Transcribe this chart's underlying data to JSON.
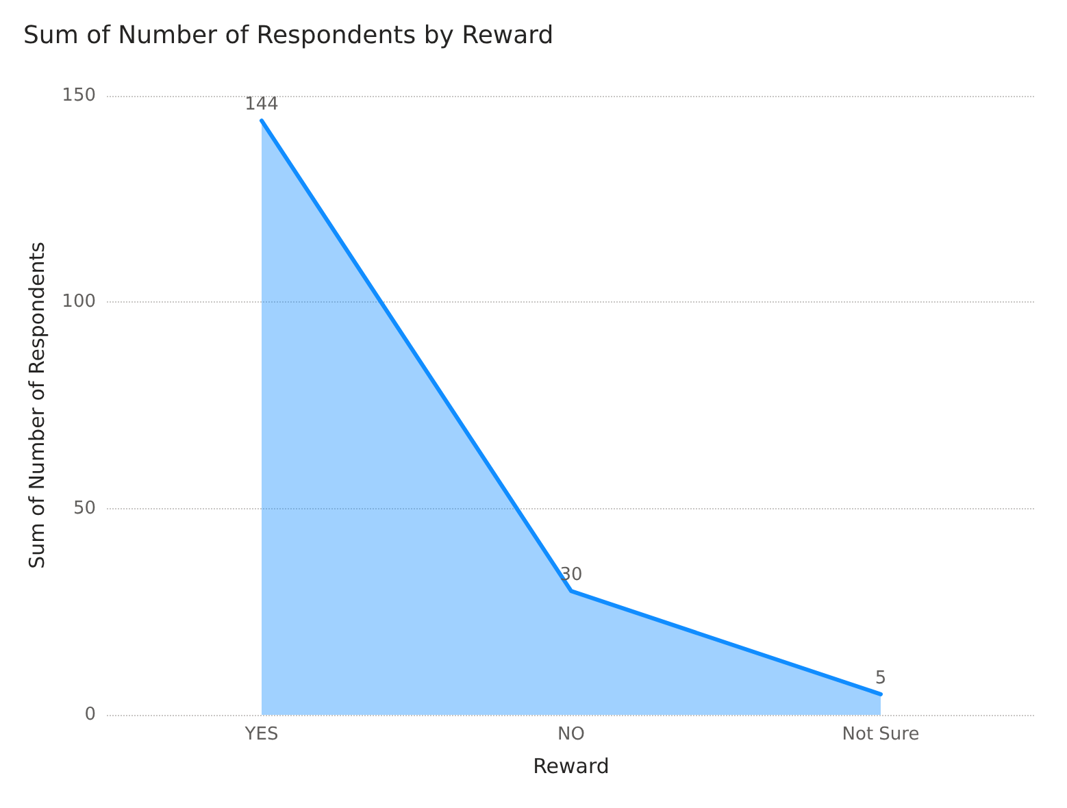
{
  "chart_data": {
    "type": "area",
    "title": "Sum of Number of Respondents by Reward",
    "xlabel": "Reward",
    "ylabel": "Sum of Number of Respondents",
    "categories": [
      "YES",
      "NO",
      "Not Sure"
    ],
    "series": [
      {
        "color": "#118dff",
        "values": [
          144,
          30,
          5
        ]
      }
    ],
    "ylim": [
      0,
      150
    ],
    "yticks": [
      0,
      50,
      100,
      150
    ],
    "grid": "y",
    "data_labels": true,
    "marker": "none",
    "line_style": "solid"
  }
}
